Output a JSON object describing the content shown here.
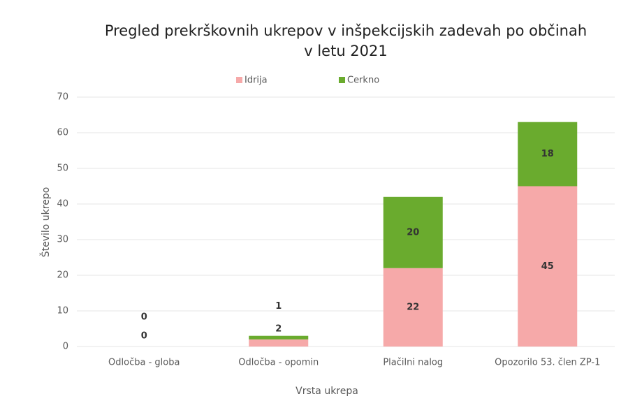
{
  "chart_data": {
    "type": "stacked_bar",
    "title": "Pregled prekrškovnih ukrepov v inšpekcijskih zadevah po občinah v letu 2021",
    "x_label": "Vrsta ukrepa",
    "y_label": "Število ukrepo",
    "categories": [
      "Odločba - globa",
      "Odločba - opomin",
      "Plačilni nalog",
      "Opozorilo 53. člen ZP-1"
    ],
    "series": [
      {
        "name": "Idrija",
        "color": "#f6a9a9",
        "values": [
          0,
          2,
          22,
          45
        ]
      },
      {
        "name": "Cerkno",
        "color": "#6aab2e",
        "values": [
          0,
          1,
          20,
          18
        ]
      }
    ],
    "ylim": [
      0,
      70
    ],
    "yticks": [
      0,
      10,
      20,
      30,
      40,
      50,
      60,
      70
    ],
    "grid": true,
    "legend": "top"
  }
}
